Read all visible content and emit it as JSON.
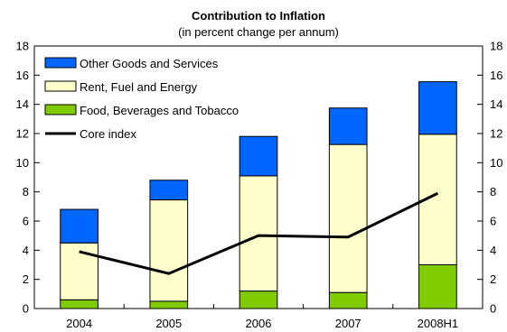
{
  "chart_data": {
    "type": "bar",
    "title": "Contribution to Inflation",
    "subtitle": "(in percent change per annum)",
    "categories": [
      "2004",
      "2005",
      "2006",
      "2007",
      "2008H1"
    ],
    "stacked": true,
    "ylim": [
      0,
      18
    ],
    "yticks": [
      0,
      2,
      4,
      6,
      8,
      10,
      12,
      14,
      16,
      18
    ],
    "right_axis_ylim": [
      0,
      18
    ],
    "grid": false,
    "legend_position": "top-left",
    "series": [
      {
        "name": "Food, Beverages and Tobacco",
        "kind": "bar",
        "color": "#80cc00",
        "values": [
          0.6,
          0.5,
          1.2,
          1.1,
          3.0
        ]
      },
      {
        "name": "Rent, Fuel and Energy",
        "kind": "bar",
        "color": "#ffffcc",
        "values": [
          3.9,
          6.95,
          7.9,
          10.15,
          8.95
        ]
      },
      {
        "name": "Other Goods and Services",
        "kind": "bar",
        "color": "#0066ff",
        "values": [
          2.3,
          1.35,
          2.7,
          2.5,
          3.6
        ]
      },
      {
        "name": "Core index",
        "kind": "line",
        "color": "#000000",
        "values": [
          3.9,
          2.4,
          5.0,
          4.9,
          7.9
        ]
      }
    ],
    "legend_order": [
      "Other Goods and Services",
      "Rent, Fuel and Energy",
      "Food, Beverages and Tobacco",
      "Core index"
    ]
  }
}
